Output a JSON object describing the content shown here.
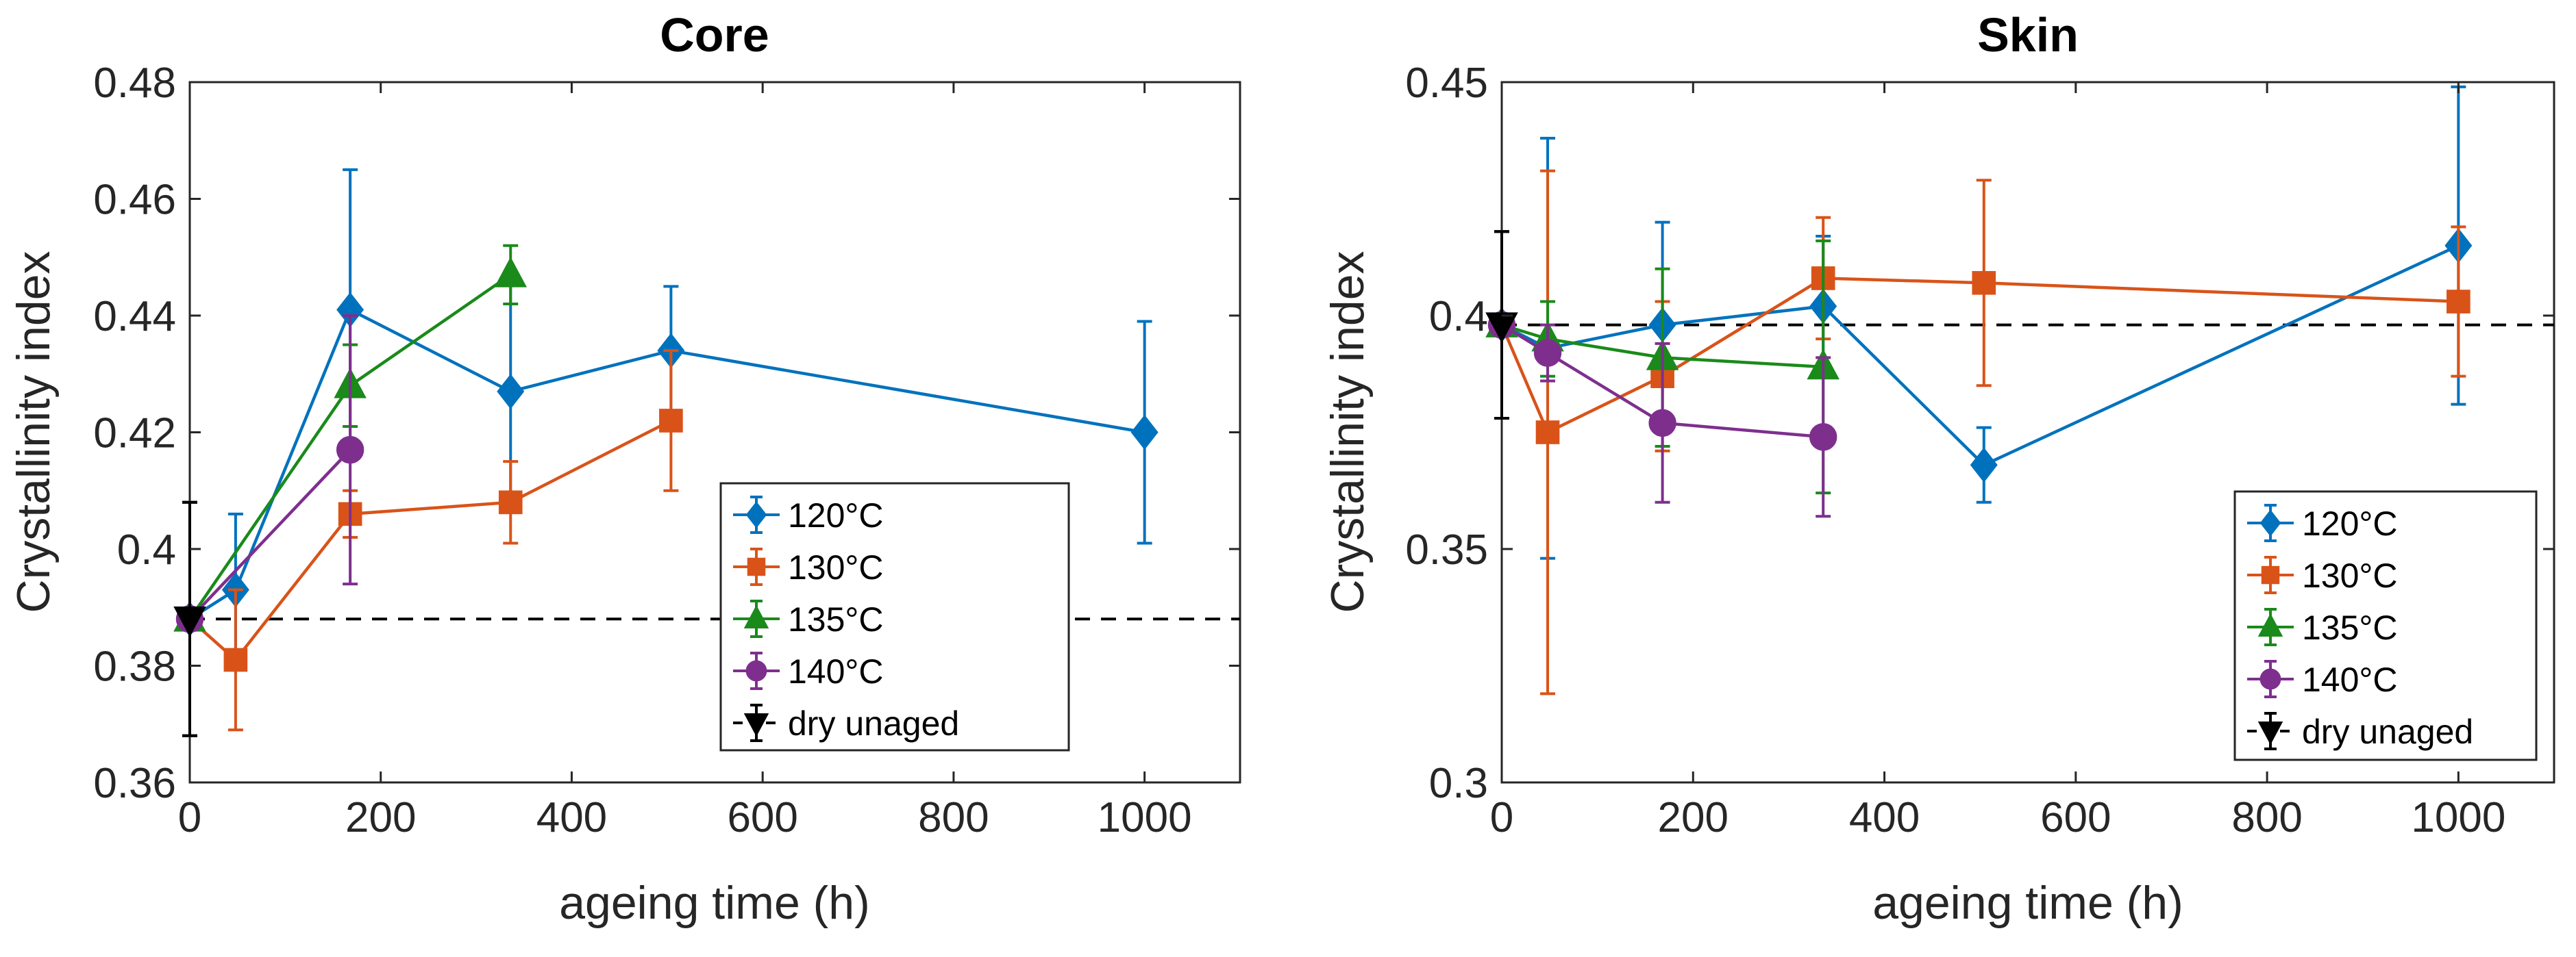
{
  "chart_data": [
    {
      "type": "line",
      "title": "Core",
      "xlabel": "ageing time (h)",
      "ylabel": "Crystallinity index",
      "xlim": [
        0,
        1100
      ],
      "ylim": [
        0.36,
        0.48
      ],
      "xticks": [
        0,
        200,
        400,
        600,
        800,
        1000
      ],
      "xtick_labels": [
        "0",
        "200",
        "400",
        "600",
        "800",
        "1000"
      ],
      "yticks": [
        0.36,
        0.38,
        0.4,
        0.42,
        0.44,
        0.46,
        0.48
      ],
      "ytick_labels": [
        "0.36",
        "0.38",
        "0.4",
        "0.42",
        "0.44",
        "0.46",
        "0.48"
      ],
      "legend_position": "bottom-right",
      "series": [
        {
          "name": "120°C",
          "color": "#0072BD",
          "marker": "diamond",
          "x": [
            0,
            48,
            168,
            336,
            504,
            1000
          ],
          "y": [
            0.388,
            0.393,
            0.441,
            0.427,
            0.434,
            0.42
          ],
          "err": [
            0.02,
            0.013,
            0.024,
            0.02,
            0.011,
            0.019
          ]
        },
        {
          "name": "130°C",
          "color": "#D95319",
          "marker": "square",
          "x": [
            0,
            48,
            168,
            336,
            504
          ],
          "y": [
            0.388,
            0.381,
            0.406,
            0.408,
            0.422
          ],
          "err": [
            0.02,
            0.012,
            0.004,
            0.007,
            0.012
          ]
        },
        {
          "name": "135°C",
          "color": "#1A8A1A",
          "marker": "triangle-up",
          "x": [
            0,
            168,
            336
          ],
          "y": [
            0.388,
            0.428,
            0.447
          ],
          "err": [
            0.02,
            0.007,
            0.005
          ]
        },
        {
          "name": "140°C",
          "color": "#7E2F8E",
          "marker": "circle",
          "x": [
            0,
            168
          ],
          "y": [
            0.388,
            0.417
          ],
          "err": [
            0.02,
            0.023
          ]
        }
      ],
      "reference": {
        "name": "dry unaged",
        "color": "#000000",
        "marker": "triangle-down",
        "x": 0,
        "y": 0.388,
        "err": 0.02
      }
    },
    {
      "type": "line",
      "title": "Skin",
      "xlabel": "ageing time (h)",
      "ylabel": "Crystallinity index",
      "xlim": [
        0,
        1100
      ],
      "ylim": [
        0.3,
        0.45
      ],
      "xticks": [
        0,
        200,
        400,
        600,
        800,
        1000
      ],
      "xtick_labels": [
        "0",
        "200",
        "400",
        "600",
        "800",
        "1000"
      ],
      "yticks": [
        0.3,
        0.35,
        0.4,
        0.45
      ],
      "ytick_labels": [
        "0.3",
        "0.35",
        "0.4",
        "0.45"
      ],
      "legend_position": "bottom-right",
      "series": [
        {
          "name": "120°C",
          "color": "#0072BD",
          "marker": "diamond",
          "x": [
            0,
            48,
            168,
            336,
            504,
            1000
          ],
          "y": [
            0.398,
            0.393,
            0.398,
            0.402,
            0.368,
            0.415
          ],
          "err": [
            0.02,
            0.045,
            0.022,
            0.015,
            0.008,
            0.034
          ]
        },
        {
          "name": "130°C",
          "color": "#D95319",
          "marker": "square",
          "x": [
            0,
            48,
            168,
            336,
            504,
            1000
          ],
          "y": [
            0.398,
            0.375,
            0.387,
            0.408,
            0.407,
            0.403
          ],
          "err": [
            0.02,
            0.056,
            0.016,
            0.013,
            0.022,
            0.016
          ]
        },
        {
          "name": "135°C",
          "color": "#1A8A1A",
          "marker": "triangle-up",
          "x": [
            0,
            48,
            168,
            336
          ],
          "y": [
            0.398,
            0.395,
            0.391,
            0.389
          ],
          "err": [
            0.02,
            0.008,
            0.019,
            0.027
          ]
        },
        {
          "name": "140°C",
          "color": "#7E2F8E",
          "marker": "circle",
          "x": [
            0,
            48,
            168,
            336
          ],
          "y": [
            0.398,
            0.392,
            0.377,
            0.374
          ],
          "err": [
            0.02,
            0.006,
            0.017,
            0.017
          ]
        }
      ],
      "reference": {
        "name": "dry unaged",
        "color": "#000000",
        "marker": "triangle-down",
        "x": 0,
        "y": 0.398,
        "err": 0.02
      }
    }
  ]
}
